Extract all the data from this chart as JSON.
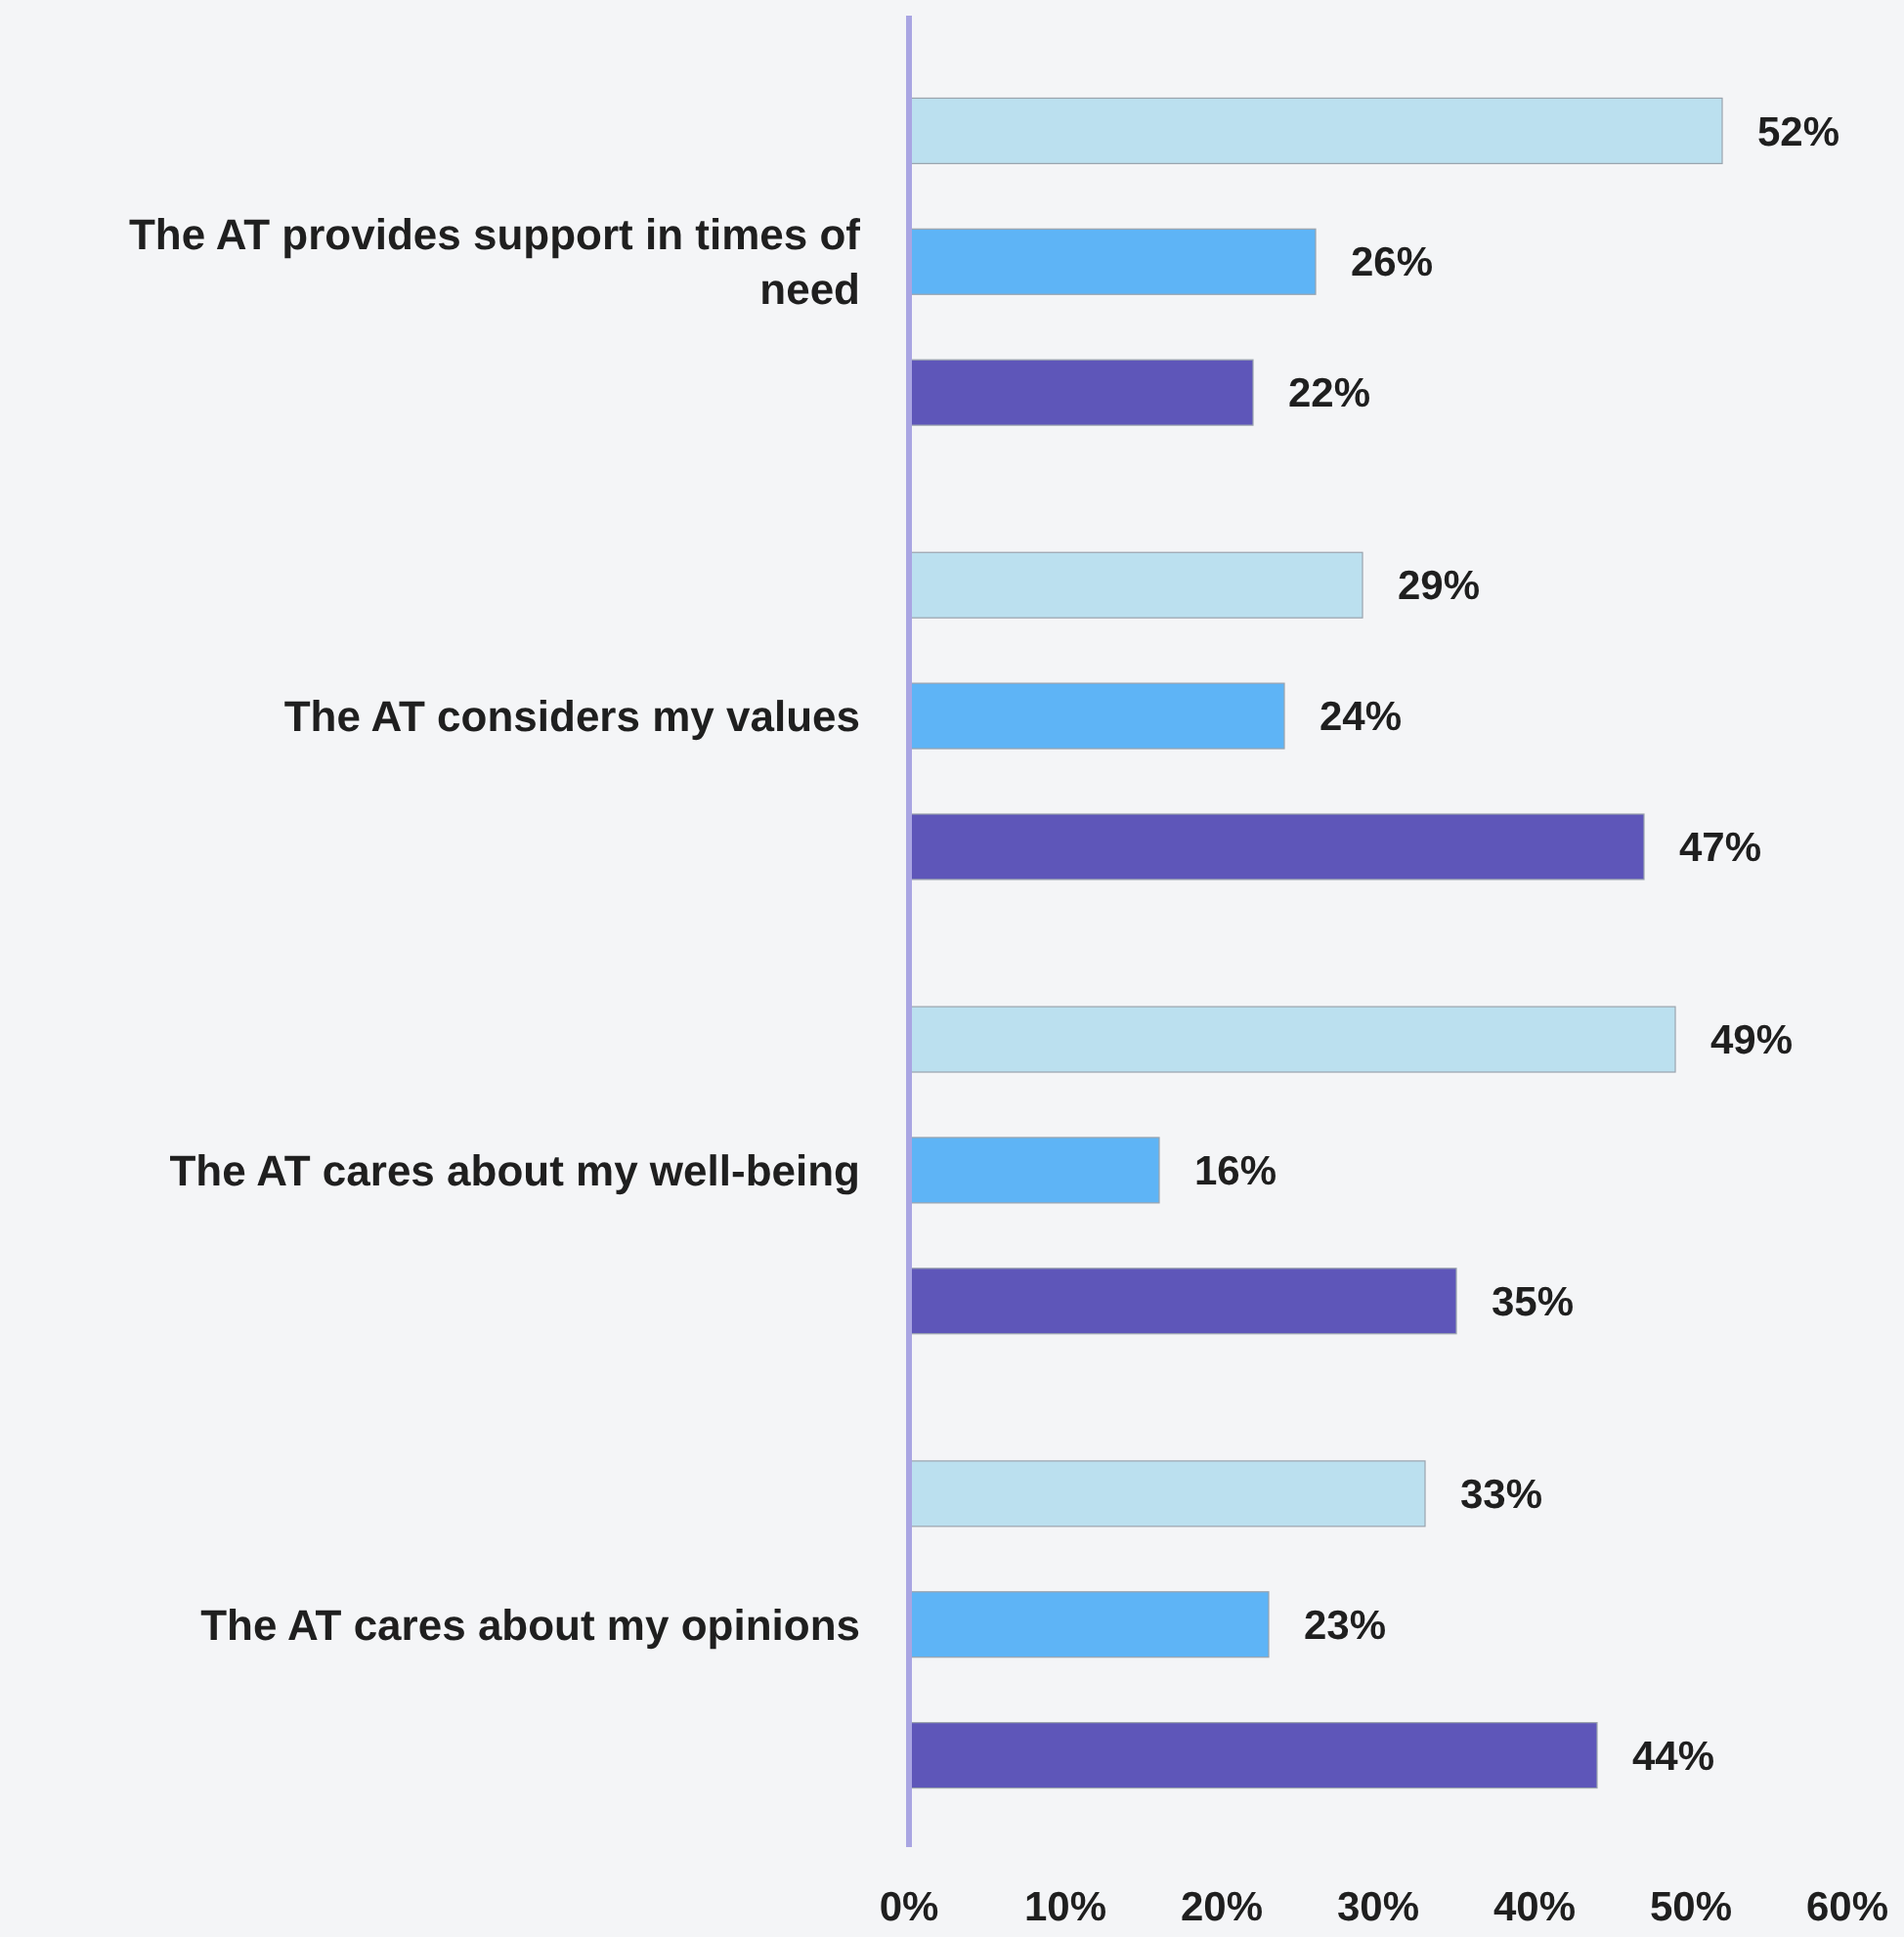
{
  "chart_data": {
    "type": "bar",
    "orientation": "horizontal",
    "categories": [
      "The AT provides support in times of need",
      "The AT considers my values",
      "The AT cares about my well-being",
      "The AT cares about my opinions"
    ],
    "series": [
      {
        "color": "#bbe0ef",
        "values": [
          52,
          29,
          49,
          33
        ],
        "value_labels": [
          "52%",
          "29%",
          "49%",
          "33%"
        ]
      },
      {
        "color": "#5eb4f6",
        "values": [
          26,
          24,
          16,
          23
        ],
        "value_labels": [
          "26%",
          "24%",
          "16%",
          "23%"
        ]
      },
      {
        "color": "#5e56b9",
        "values": [
          22,
          47,
          35,
          44
        ],
        "value_labels": [
          "22%",
          "47%",
          "35%",
          "44%"
        ]
      }
    ],
    "xlim": [
      0,
      60
    ],
    "xticks": [
      {
        "value": 0,
        "label": "0%"
      },
      {
        "value": 10,
        "label": "10%"
      },
      {
        "value": 20,
        "label": "20%"
      },
      {
        "value": 30,
        "label": "30%"
      },
      {
        "value": 40,
        "label": "40%"
      },
      {
        "value": 50,
        "label": "50%"
      },
      {
        "value": 60,
        "label": "60%"
      }
    ]
  }
}
